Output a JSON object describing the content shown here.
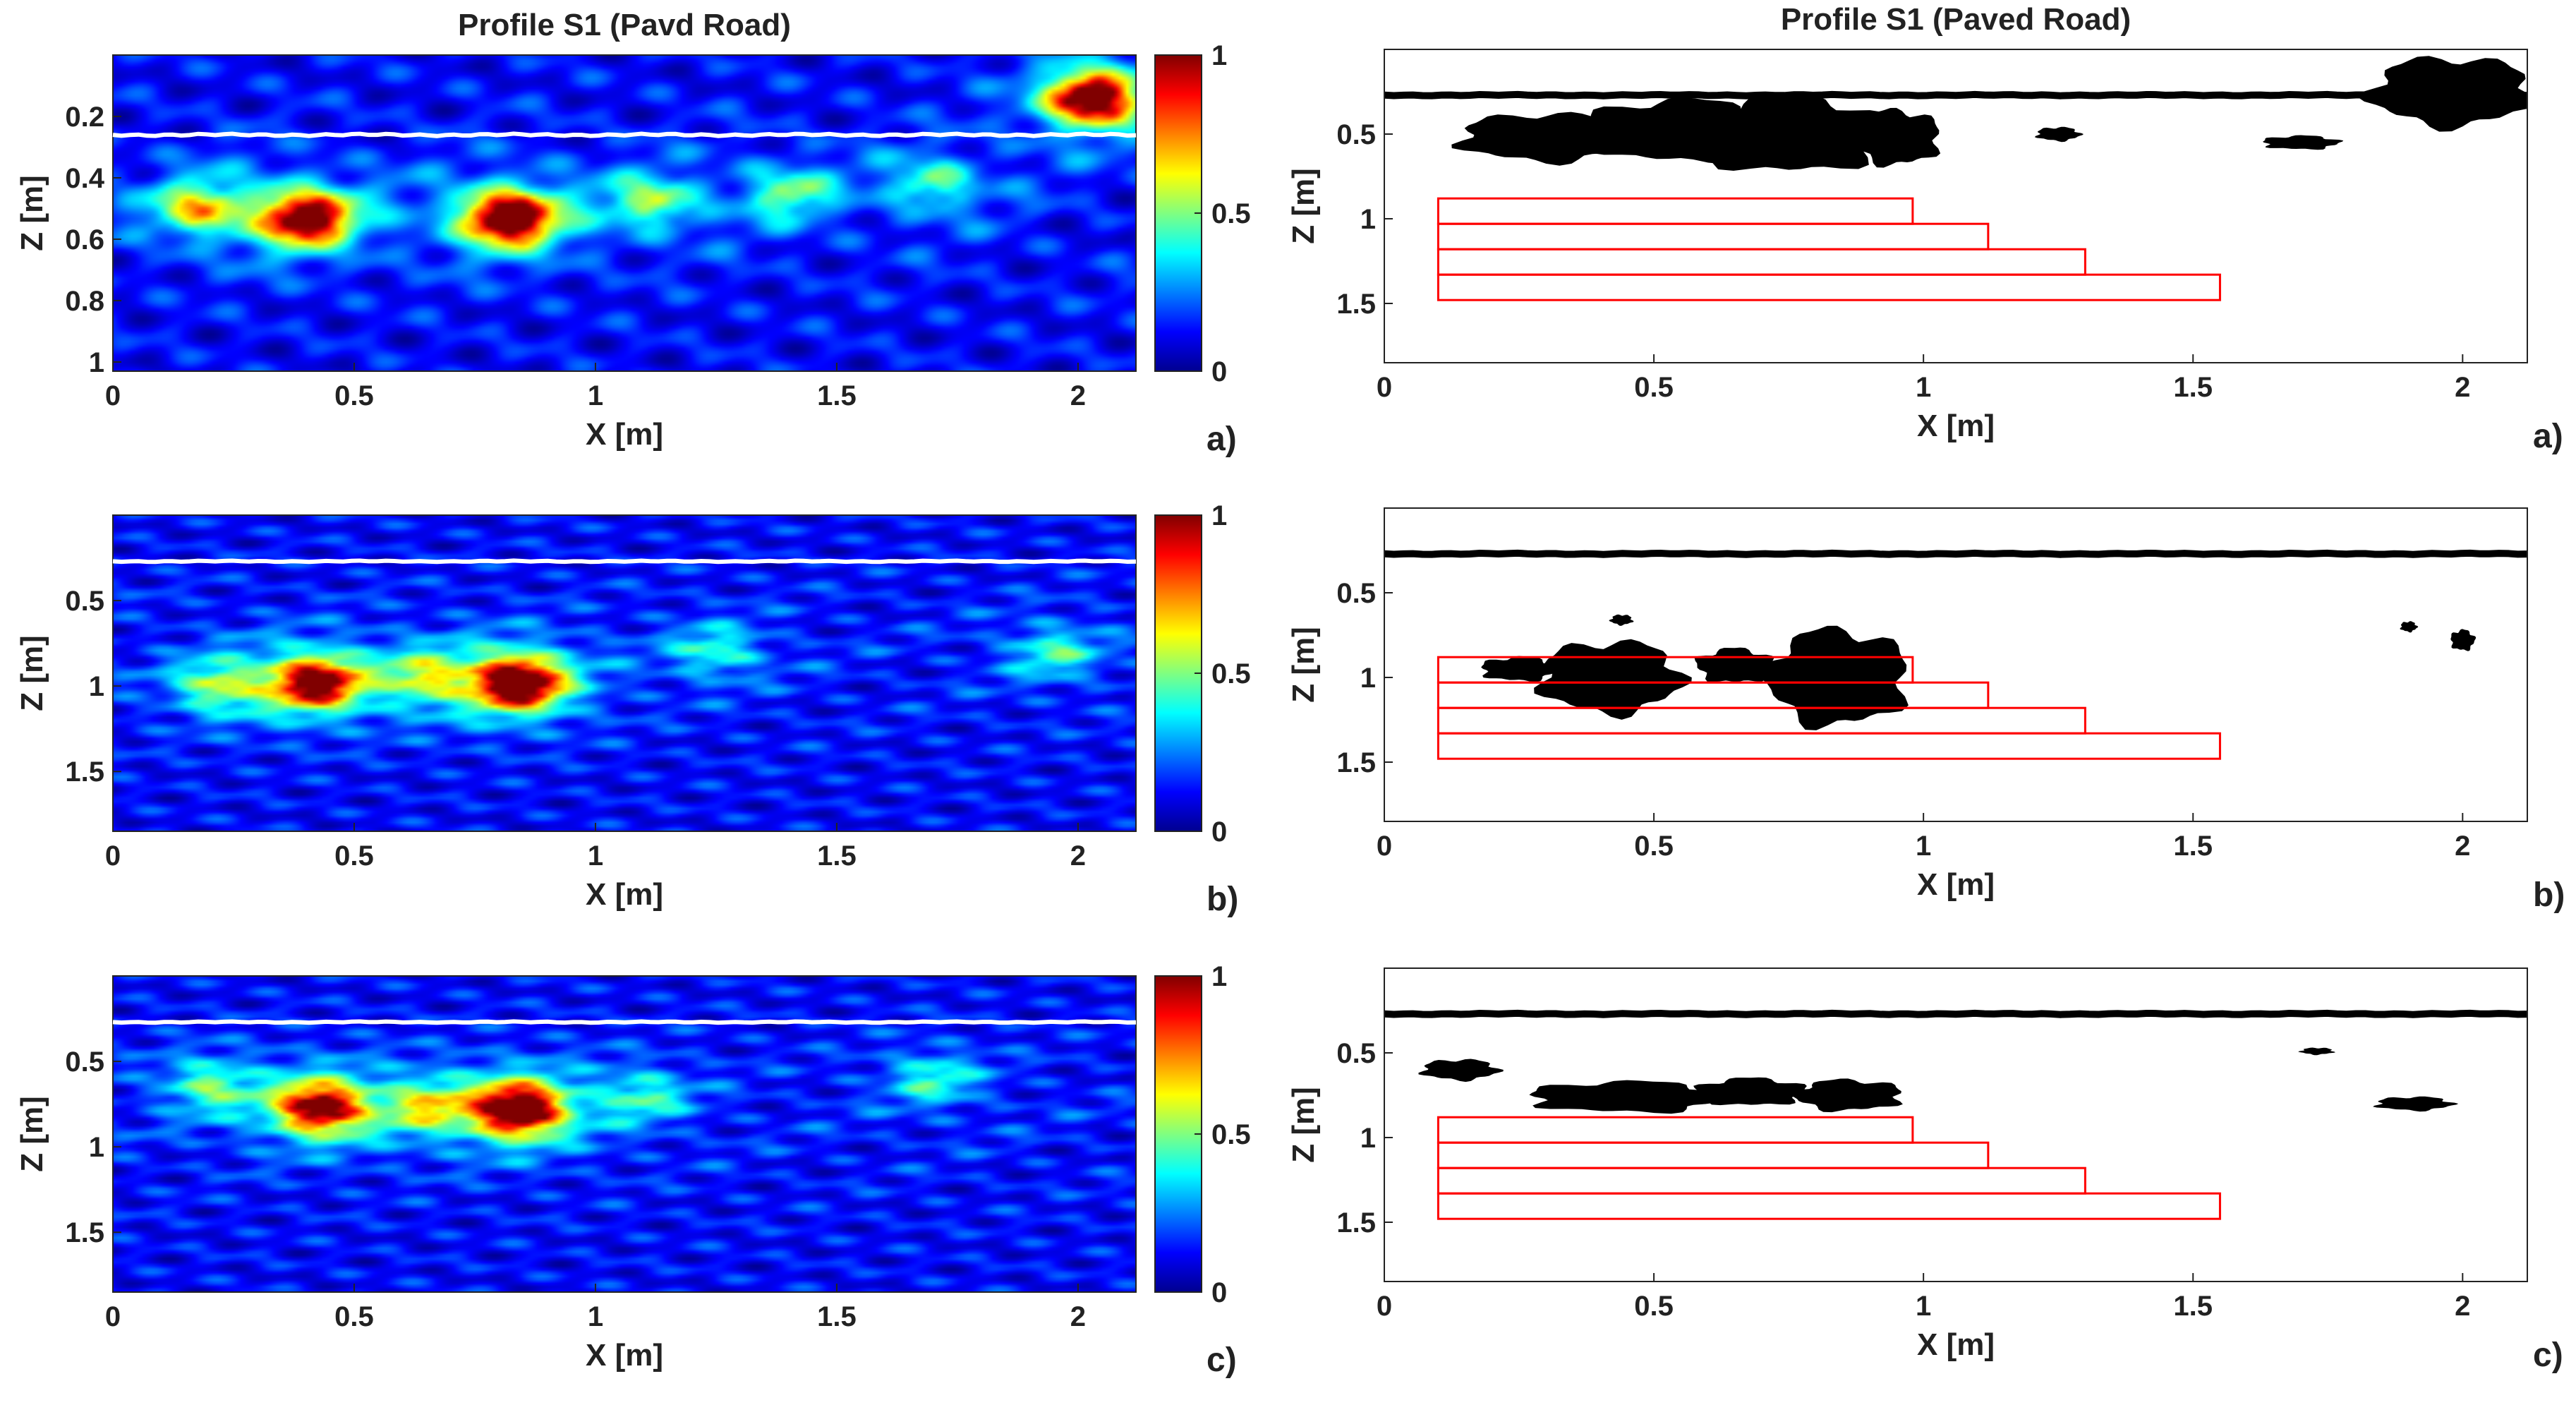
{
  "colors": {
    "cmap": [
      "#00008f",
      "#0000ff",
      "#0080ff",
      "#00ffff",
      "#80ff80",
      "#ffff00",
      "#ff8000",
      "#ff0000",
      "#800000"
    ],
    "surface_heatmap": "#ffffff",
    "surface_mask": "#000000",
    "target_outline": "#ff0000",
    "background": "#ffffff"
  },
  "chart_data": [
    {
      "type": "heatmap",
      "id": "left-a",
      "title": "Profile S1 (Pavd Road)",
      "panel_label": "a)",
      "xlabel": "X [m]",
      "ylabel": "Z [m]",
      "xlim": [
        0,
        2.12
      ],
      "ylim": [
        0,
        1.03
      ],
      "xticks": [
        "0",
        "0.5",
        "1",
        "1.5",
        "2"
      ],
      "yticks": [
        "0.2",
        "0.4",
        "0.6",
        "0.8",
        "1"
      ],
      "colorbar": {
        "min": 0,
        "max": 1,
        "ticks": [
          "0",
          "0.5",
          "1"
        ]
      },
      "surface_depth": 0.26,
      "hotspots": [
        {
          "x": 0.4,
          "z": 0.53,
          "amplitude": 0.9
        },
        {
          "x": 0.82,
          "z": 0.53,
          "amplitude": 1.0
        },
        {
          "x": 2.03,
          "z": 0.14,
          "amplitude": 0.95
        },
        {
          "x": 0.18,
          "z": 0.5,
          "amplitude": 0.45
        },
        {
          "x": 1.12,
          "z": 0.48,
          "amplitude": 0.35
        },
        {
          "x": 1.4,
          "z": 0.45,
          "amplitude": 0.3
        },
        {
          "x": 1.7,
          "z": 0.42,
          "amplitude": 0.3
        }
      ]
    },
    {
      "type": "heatmap",
      "id": "left-b",
      "title": "",
      "panel_label": "b)",
      "xlabel": "X [m]",
      "ylabel": "Z [m]",
      "xlim": [
        0,
        2.12
      ],
      "ylim": [
        0,
        1.85
      ],
      "xticks": [
        "0",
        "0.5",
        "1",
        "1.5",
        "2"
      ],
      "yticks": [
        "0.5",
        "1",
        "1.5"
      ],
      "colorbar": {
        "min": 0,
        "max": 1,
        "ticks": [
          "0",
          "0.5",
          "1"
        ]
      },
      "surface_depth": 0.27,
      "hotspots": [
        {
          "x": 0.42,
          "z": 0.98,
          "amplitude": 0.85
        },
        {
          "x": 0.84,
          "z": 0.98,
          "amplitude": 1.0
        },
        {
          "x": 0.22,
          "z": 1.0,
          "amplitude": 0.35
        },
        {
          "x": 0.65,
          "z": 0.95,
          "amplitude": 0.35
        },
        {
          "x": 1.25,
          "z": 0.8,
          "amplitude": 0.25
        },
        {
          "x": 1.95,
          "z": 0.8,
          "amplitude": 0.25
        }
      ]
    },
    {
      "type": "heatmap",
      "id": "left-c",
      "title": "",
      "panel_label": "c)",
      "xlabel": "X [m]",
      "ylabel": "Z [m]",
      "xlim": [
        0,
        2.12
      ],
      "ylim": [
        0,
        1.85
      ],
      "xticks": [
        "0",
        "0.5",
        "1",
        "1.5",
        "2"
      ],
      "yticks": [
        "0.5",
        "1",
        "1.5"
      ],
      "colorbar": {
        "min": 0,
        "max": 1,
        "ticks": [
          "0",
          "0.5",
          "1"
        ]
      },
      "surface_depth": 0.27,
      "hotspots": [
        {
          "x": 0.43,
          "z": 0.77,
          "amplitude": 0.85
        },
        {
          "x": 0.84,
          "z": 0.78,
          "amplitude": 1.0
        },
        {
          "x": 0.2,
          "z": 0.64,
          "amplitude": 0.3
        },
        {
          "x": 0.65,
          "z": 0.76,
          "amplitude": 0.35
        },
        {
          "x": 1.1,
          "z": 0.7,
          "amplitude": 0.25
        },
        {
          "x": 1.7,
          "z": 0.6,
          "amplitude": 0.25
        }
      ]
    },
    {
      "type": "heatmap",
      "id": "right-a",
      "title": "Profile S1 (Paved Road)",
      "panel_label": "a)",
      "xlabel": "X [m]",
      "ylabel": "Z [m]",
      "xlim": [
        0,
        2.12
      ],
      "ylim": [
        0,
        1.85
      ],
      "xticks": [
        "0",
        "0.5",
        "1",
        "1.5",
        "2"
      ],
      "yticks": [
        "0.5",
        "1",
        "1.5"
      ],
      "surface_depth": 0.27,
      "blobs": [
        {
          "x": 0.3,
          "z": 0.52,
          "rx": 0.16,
          "rz": 0.14
        },
        {
          "x": 0.55,
          "z": 0.48,
          "rx": 0.18,
          "rz": 0.18
        },
        {
          "x": 0.75,
          "z": 0.5,
          "rx": 0.18,
          "rz": 0.22
        },
        {
          "x": 0.95,
          "z": 0.52,
          "rx": 0.08,
          "rz": 0.16
        },
        {
          "x": 1.98,
          "z": 0.25,
          "rx": 0.15,
          "rz": 0.2
        },
        {
          "x": 1.25,
          "z": 0.5,
          "rx": 0.04,
          "rz": 0.04
        },
        {
          "x": 1.7,
          "z": 0.55,
          "rx": 0.07,
          "rz": 0.04
        }
      ],
      "targets": [
        {
          "x0": 0.1,
          "x1": 0.98,
          "z0": 0.88,
          "z1": 1.03
        },
        {
          "x0": 0.1,
          "x1": 1.12,
          "z0": 1.03,
          "z1": 1.18
        },
        {
          "x0": 0.1,
          "x1": 1.3,
          "z0": 1.18,
          "z1": 1.33
        },
        {
          "x0": 0.1,
          "x1": 1.55,
          "z0": 1.33,
          "z1": 1.48
        }
      ]
    },
    {
      "type": "heatmap",
      "id": "right-b",
      "title": "",
      "panel_label": "b)",
      "xlabel": "X [m]",
      "ylabel": "Z [m]",
      "xlim": [
        0,
        2.12
      ],
      "ylim": [
        0,
        1.85
      ],
      "xticks": [
        "0",
        "0.5",
        "1",
        "1.5",
        "2"
      ],
      "yticks": [
        "0.5",
        "1",
        "1.5"
      ],
      "surface_depth": 0.27,
      "blobs": [
        {
          "x": 0.42,
          "z": 1.0,
          "rx": 0.13,
          "rz": 0.21
        },
        {
          "x": 0.25,
          "z": 0.95,
          "rx": 0.07,
          "rz": 0.07
        },
        {
          "x": 0.65,
          "z": 0.93,
          "rx": 0.07,
          "rz": 0.1
        },
        {
          "x": 0.84,
          "z": 1.0,
          "rx": 0.13,
          "rz": 0.28
        },
        {
          "x": 0.44,
          "z": 0.66,
          "rx": 0.02,
          "rz": 0.03
        },
        {
          "x": 1.9,
          "z": 0.7,
          "rx": 0.015,
          "rz": 0.03
        },
        {
          "x": 2.0,
          "z": 0.78,
          "rx": 0.022,
          "rz": 0.06
        }
      ],
      "targets": [
        {
          "x0": 0.1,
          "x1": 0.98,
          "z0": 0.88,
          "z1": 1.03
        },
        {
          "x0": 0.1,
          "x1": 1.12,
          "z0": 1.03,
          "z1": 1.18
        },
        {
          "x0": 0.1,
          "x1": 1.3,
          "z0": 1.18,
          "z1": 1.33
        },
        {
          "x0": 0.1,
          "x1": 1.55,
          "z0": 1.33,
          "z1": 1.48
        }
      ]
    },
    {
      "type": "heatmap",
      "id": "right-c",
      "title": "",
      "panel_label": "c)",
      "xlabel": "X [m]",
      "ylabel": "Z [m]",
      "xlim": [
        0,
        2.12
      ],
      "ylim": [
        0,
        1.85
      ],
      "xticks": [
        "0",
        "0.5",
        "1",
        "1.5",
        "2"
      ],
      "yticks": [
        "0.5",
        "1",
        "1.5"
      ],
      "surface_depth": 0.27,
      "blobs": [
        {
          "x": 0.14,
          "z": 0.6,
          "rx": 0.07,
          "rz": 0.06
        },
        {
          "x": 0.45,
          "z": 0.76,
          "rx": 0.18,
          "rz": 0.09
        },
        {
          "x": 0.68,
          "z": 0.73,
          "rx": 0.1,
          "rz": 0.08
        },
        {
          "x": 0.86,
          "z": 0.75,
          "rx": 0.1,
          "rz": 0.09
        },
        {
          "x": 1.73,
          "z": 0.49,
          "rx": 0.03,
          "rz": 0.02
        },
        {
          "x": 1.91,
          "z": 0.8,
          "rx": 0.07,
          "rz": 0.04
        }
      ],
      "targets": [
        {
          "x0": 0.1,
          "x1": 0.98,
          "z0": 0.88,
          "z1": 1.03
        },
        {
          "x0": 0.1,
          "x1": 1.12,
          "z0": 1.03,
          "z1": 1.18
        },
        {
          "x0": 0.1,
          "x1": 1.3,
          "z0": 1.18,
          "z1": 1.33
        },
        {
          "x0": 0.1,
          "x1": 1.55,
          "z0": 1.33,
          "z1": 1.48
        }
      ]
    }
  ]
}
